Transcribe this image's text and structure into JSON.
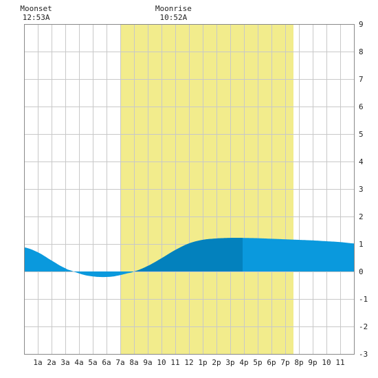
{
  "chart_data": {
    "type": "area",
    "title": "",
    "xlabel": "",
    "ylabel": "",
    "xlim": [
      0,
      24
    ],
    "ylim": [
      -3,
      9
    ],
    "y_ticks": [
      -3,
      -2,
      -1,
      0,
      1,
      2,
      3,
      4,
      5,
      6,
      7,
      8,
      9
    ],
    "x_tick_labels": [
      "1a",
      "2a",
      "3a",
      "4a",
      "5a",
      "6a",
      "7a",
      "8a",
      "9a",
      "10",
      "11",
      "12",
      "1p",
      "2p",
      "3p",
      "4p",
      "5p",
      "6p",
      "7p",
      "8p",
      "9p",
      "10",
      "11"
    ],
    "x_tick_positions": [
      1,
      2,
      3,
      4,
      5,
      6,
      7,
      8,
      9,
      10,
      11,
      12,
      13,
      14,
      15,
      16,
      17,
      18,
      19,
      20,
      21,
      22,
      23
    ],
    "grid": true,
    "daylight": {
      "start": 7.0,
      "end": 19.6
    },
    "moon_events": [
      {
        "label": "Moonset",
        "time": "12:53A",
        "x": 0.88
      },
      {
        "label": "Moonrise",
        "time": "10:52A",
        "x": 10.87
      }
    ],
    "series": [
      {
        "x": [
          0,
          1,
          2,
          3,
          3.5,
          4,
          4.5,
          5,
          5.5,
          6,
          6.5,
          7,
          7.5,
          8,
          9,
          10,
          11,
          12,
          13,
          14,
          15,
          16,
          17,
          18,
          19,
          20,
          21,
          22,
          23,
          24
        ],
        "values": [
          0.88,
          0.7,
          0.4,
          0.12,
          0.02,
          -0.07,
          -0.14,
          -0.18,
          -0.2,
          -0.2,
          -0.18,
          -0.13,
          -0.07,
          0.0,
          0.2,
          0.48,
          0.78,
          1.02,
          1.15,
          1.2,
          1.22,
          1.22,
          1.21,
          1.19,
          1.17,
          1.15,
          1.13,
          1.1,
          1.07,
          1.02
        ]
      }
    ],
    "highlight_range": {
      "start": 8.0,
      "end": 15.9
    },
    "colors": {
      "tide_fill": "#0a99dd",
      "tide_highlight": "#0381bd",
      "daylight": "#f2ec8c",
      "grid": "#c8c8c8",
      "border": "#888888",
      "text": "#222222"
    }
  }
}
